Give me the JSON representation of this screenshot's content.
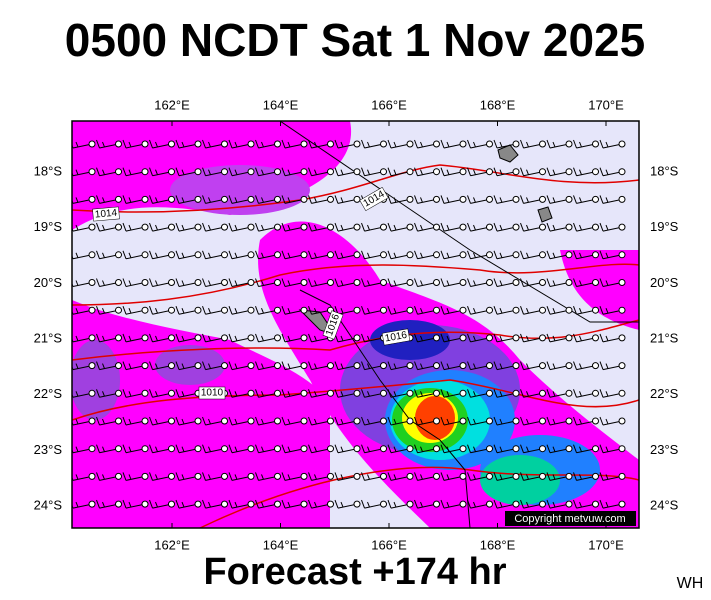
{
  "title": "0500 NCDT Sat 1 Nov 2025",
  "longitude_labels": [
    "162°E",
    "164°E",
    "166°E",
    "168°E",
    "170°E"
  ],
  "latitude_labels": [
    "18°S",
    "19°S",
    "20°S",
    "21°S",
    "22°S",
    "23°S",
    "24°S"
  ],
  "isobar_labels": [
    "1014",
    "1014",
    "1016",
    "1016",
    "1010"
  ],
  "copyright": "Copyright metvuw.com",
  "footer": "Forecast +174 hr",
  "corner_label": "WH"
}
